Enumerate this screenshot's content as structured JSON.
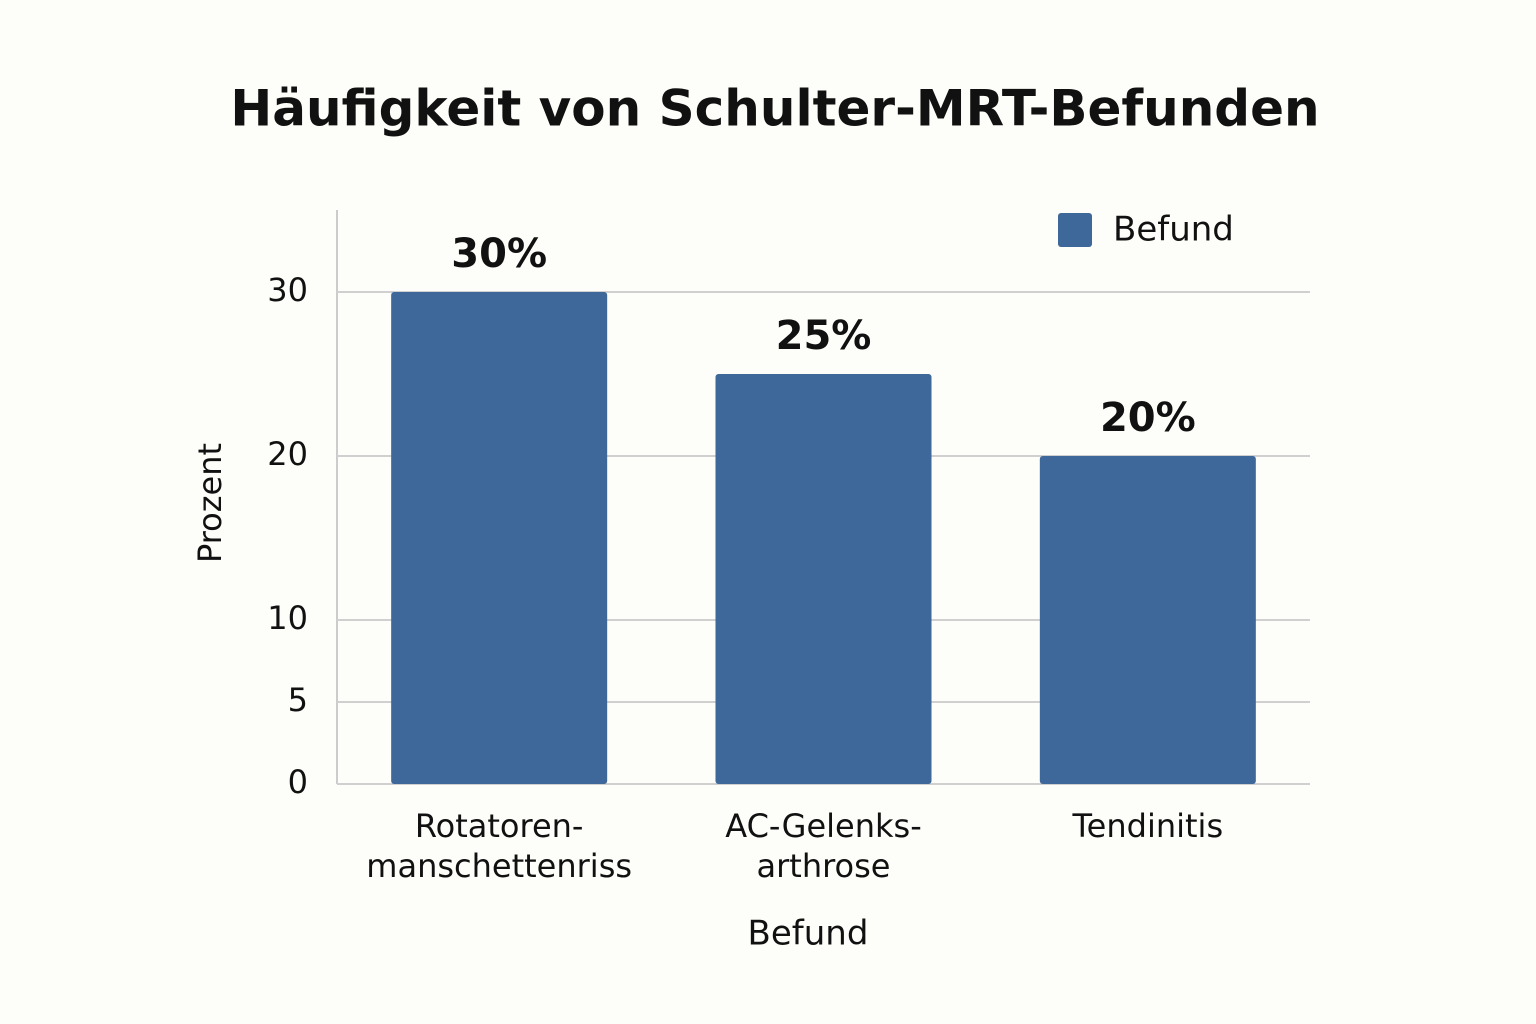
{
  "chart_data": {
    "type": "bar",
    "title": "Häufigkeit von Schulter-MRT-Befunden",
    "x_label": "Befund",
    "y_label": "Prozent",
    "categories": [
      [
        "Rotatoren-",
        "manschettenriss"
      ],
      [
        "AC-Gelenks-",
        "arthrose"
      ],
      [
        "Tendinitis"
      ]
    ],
    "series": [
      {
        "name": "Befund",
        "color": "#3d6899",
        "values": [
          30,
          25,
          20
        ],
        "value_labels": [
          "30%",
          "25%",
          "20%"
        ]
      }
    ],
    "ylim": [
      0,
      35
    ],
    "yticks": [
      0,
      5,
      10,
      20,
      30
    ],
    "grid": true,
    "legend": "upper-right"
  }
}
